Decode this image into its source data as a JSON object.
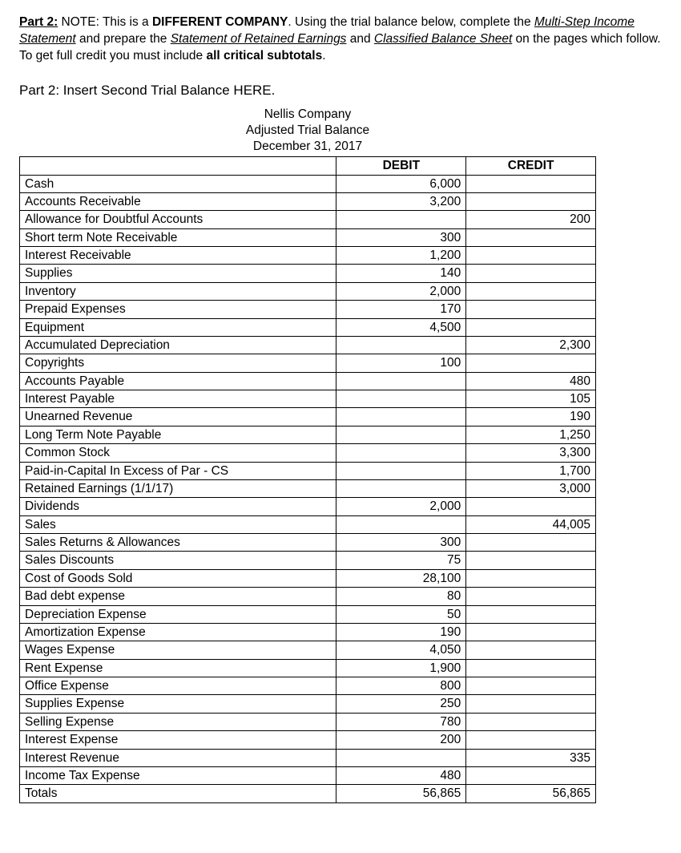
{
  "intro": {
    "part_label": "Part 2:",
    "note_prefix": " NOTE: This is a ",
    "diff_company": "DIFFERENT COMPANY",
    "after_diff": ". Using the trial balance below, complete the ",
    "multi_step": "Multi-Step Income Statement",
    "after_multi": " and prepare the ",
    "sre": "Statement of Retained Earnings",
    "after_sre": " and ",
    "cbs": "Classified Balance Sheet",
    "after_cbs": " on the pages which follow.  To get full credit you must include ",
    "all_crit": "all critical subtotals",
    "period": "."
  },
  "instr2": "Part 2: Insert Second Trial Balance HERE.",
  "tb_header": {
    "company": "Nellis Company",
    "title": "Adjusted Trial Balance",
    "date": "December 31, 2017"
  },
  "col_headers": {
    "debit": "DEBIT",
    "credit": "CREDIT"
  },
  "rows": [
    {
      "acct": "Cash",
      "debit": "6,000",
      "credit": ""
    },
    {
      "acct": "Accounts Receivable",
      "debit": "3,200",
      "credit": ""
    },
    {
      "acct": "Allowance for Doubtful Accounts",
      "debit": "",
      "credit": "200"
    },
    {
      "acct": "Short term Note Receivable",
      "debit": "300",
      "credit": ""
    },
    {
      "acct": "Interest Receivable",
      "debit": "1,200",
      "credit": ""
    },
    {
      "acct": "Supplies",
      "debit": "140",
      "credit": ""
    },
    {
      "acct": "Inventory",
      "debit": "2,000",
      "credit": ""
    },
    {
      "acct": "Prepaid Expenses",
      "debit": "170",
      "credit": ""
    },
    {
      "acct": "Equipment",
      "debit": "4,500",
      "credit": ""
    },
    {
      "acct": "Accumulated Depreciation",
      "debit": "",
      "credit": "2,300"
    },
    {
      "acct": "Copyrights",
      "debit": "100",
      "credit": ""
    },
    {
      "acct": "Accounts Payable",
      "debit": "",
      "credit": "480"
    },
    {
      "acct": "Interest Payable",
      "debit": "",
      "credit": "105"
    },
    {
      "acct": "Unearned Revenue",
      "debit": "",
      "credit": "190"
    },
    {
      "acct": "Long Term Note Payable",
      "debit": "",
      "credit": "1,250"
    },
    {
      "acct": "Common Stock",
      "debit": "",
      "credit": "3,300"
    },
    {
      "acct": "Paid-in-Capital In Excess of Par - CS",
      "debit": "",
      "credit": "1,700"
    },
    {
      "acct": "Retained Earnings (1/1/17)",
      "debit": "",
      "credit": "3,000"
    },
    {
      "acct": "Dividends",
      "debit": "2,000",
      "credit": ""
    },
    {
      "acct": "Sales",
      "debit": "",
      "credit": "44,005"
    },
    {
      "acct": "Sales Returns & Allowances",
      "debit": "300",
      "credit": ""
    },
    {
      "acct": "Sales Discounts",
      "debit": "75",
      "credit": ""
    },
    {
      "acct": "Cost of Goods Sold",
      "debit": "28,100",
      "credit": ""
    },
    {
      "acct": "Bad debt expense",
      "debit": "80",
      "credit": ""
    },
    {
      "acct": "Depreciation Expense",
      "debit": "50",
      "credit": ""
    },
    {
      "acct": "Amortization Expense",
      "debit": "190",
      "credit": ""
    },
    {
      "acct": "Wages Expense",
      "debit": "4,050",
      "credit": ""
    },
    {
      "acct": "Rent Expense",
      "debit": "1,900",
      "credit": ""
    },
    {
      "acct": "Office Expense",
      "debit": "800",
      "credit": ""
    },
    {
      "acct": "Supplies Expense",
      "debit": "250",
      "credit": ""
    },
    {
      "acct": "Selling Expense",
      "debit": "780",
      "credit": ""
    },
    {
      "acct": "Interest Expense",
      "debit": "200",
      "credit": ""
    },
    {
      "acct": "Interest Revenue",
      "debit": "",
      "credit": "335"
    },
    {
      "acct": "Income Tax Expense",
      "debit": "480",
      "credit": ""
    },
    {
      "acct": "Totals",
      "debit": "56,865",
      "credit": "56,865"
    }
  ],
  "style": {
    "text_color": "#000000",
    "background_color": "#ffffff",
    "border_color": "#000000",
    "font_family": "Verdana",
    "body_fontsize_pt": 12,
    "header_font_weight": "bold"
  }
}
